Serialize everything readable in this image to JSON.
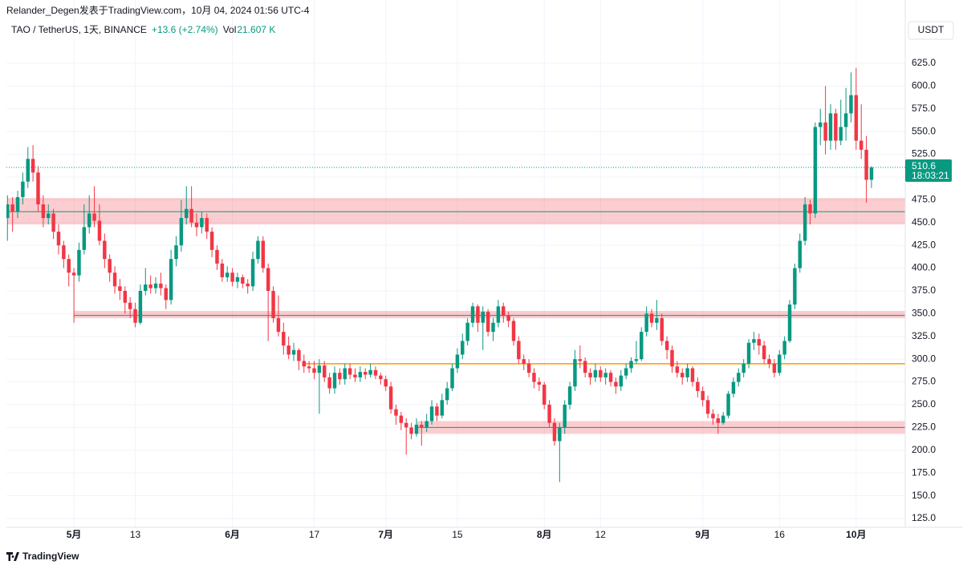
{
  "chart_data": {
    "type": "candlestick",
    "attribution": "Relander_Degen发表于TradingView.com，10月 04, 2024 01:56 UTC-4",
    "symbol": "TAO / TetherUS, 1天, BINANCE",
    "change": "+13.6 (+2.74%)",
    "volume_label": "Vol",
    "volume": "21.607 K",
    "currency": "USDT",
    "countdown": "18:03:21",
    "brand": "TradingView",
    "up_color": "#089981",
    "down_color": "#f23645",
    "xlim": [
      -0.2,
      175.6
    ],
    "ylim": [
      115.3,
      694.5
    ],
    "grid": true,
    "xticks": [
      {
        "value": 13,
        "label": "5月",
        "major": true
      },
      {
        "value": 25,
        "label": "13"
      },
      {
        "value": 44,
        "label": "6月",
        "major": true
      },
      {
        "value": 60,
        "label": "17"
      },
      {
        "value": 74,
        "label": "7月",
        "major": true
      },
      {
        "value": 88,
        "label": "15"
      },
      {
        "value": 105,
        "label": "8月",
        "major": true
      },
      {
        "value": 116,
        "label": "12"
      },
      {
        "value": 136,
        "label": "9月",
        "major": true
      },
      {
        "value": 151,
        "label": "16"
      },
      {
        "value": 166,
        "label": "10月",
        "major": true
      }
    ],
    "yticks": [
      {
        "value": 125,
        "label": "125.0"
      },
      {
        "value": 150,
        "label": "150.0"
      },
      {
        "value": 175,
        "label": "175.0"
      },
      {
        "value": 200,
        "label": "200.0"
      },
      {
        "value": 225,
        "label": "225.0"
      },
      {
        "value": 250,
        "label": "250.0"
      },
      {
        "value": 275,
        "label": "275.0"
      },
      {
        "value": 300,
        "label": "300.0"
      },
      {
        "value": 325,
        "label": "325.0"
      },
      {
        "value": 350,
        "label": "350.0"
      },
      {
        "value": 375,
        "label": "375.0"
      },
      {
        "value": 400,
        "label": "400.0"
      },
      {
        "value": 425,
        "label": "425.0"
      },
      {
        "value": 450,
        "label": "450.0"
      },
      {
        "value": 475,
        "label": "475.0"
      },
      {
        "value": 500,
        "label": "500.0"
      },
      {
        "value": 525,
        "label": "525.0"
      },
      {
        "value": 550,
        "label": "550.0"
      },
      {
        "value": 575,
        "label": "575.0"
      },
      {
        "value": 600,
        "label": "600.0"
      },
      {
        "value": 625,
        "label": "625.0"
      }
    ],
    "levels": [
      {
        "low": 448,
        "high": 477,
        "line": 462,
        "from": 0,
        "color": "#f23645",
        "line_color": "#089981"
      },
      {
        "low": 345,
        "high": 353,
        "line": 348,
        "from": 13,
        "color": "#f23645",
        "line_color": "#089981"
      },
      {
        "line": 295,
        "from": 58,
        "line_color": "#ff9800"
      },
      {
        "low": 218,
        "high": 232,
        "line": 225,
        "from": 80,
        "color": "#f23645",
        "line_color": "#089981"
      }
    ],
    "candles": [
      [
        455,
        480,
        430,
        470
      ],
      [
        470,
        478,
        440,
        462
      ],
      [
        462,
        485,
        455,
        478
      ],
      [
        478,
        505,
        470,
        495
      ],
      [
        495,
        533,
        488,
        520
      ],
      [
        520,
        535,
        495,
        505
      ],
      [
        505,
        512,
        462,
        470
      ],
      [
        470,
        480,
        445,
        455
      ],
      [
        455,
        470,
        448,
        460
      ],
      [
        460,
        465,
        432,
        440
      ],
      [
        440,
        448,
        415,
        425
      ],
      [
        425,
        430,
        400,
        410
      ],
      [
        410,
        415,
        380,
        395
      ],
      [
        395,
        400,
        340,
        392
      ],
      [
        392,
        428,
        385,
        420
      ],
      [
        420,
        470,
        415,
        445
      ],
      [
        445,
        480,
        438,
        460
      ],
      [
        460,
        490,
        445,
        452
      ],
      [
        452,
        470,
        425,
        430
      ],
      [
        430,
        438,
        400,
        410
      ],
      [
        410,
        415,
        385,
        395
      ],
      [
        395,
        402,
        372,
        380
      ],
      [
        380,
        388,
        365,
        375
      ],
      [
        375,
        380,
        350,
        362
      ],
      [
        362,
        368,
        345,
        355
      ],
      [
        355,
        362,
        335,
        340
      ],
      [
        340,
        382,
        338,
        375
      ],
      [
        375,
        400,
        370,
        382
      ],
      [
        382,
        392,
        372,
        378
      ],
      [
        378,
        390,
        372,
        383
      ],
      [
        383,
        395,
        370,
        378
      ],
      [
        378,
        382,
        355,
        365
      ],
      [
        365,
        420,
        360,
        410
      ],
      [
        410,
        435,
        402,
        425
      ],
      [
        425,
        475,
        418,
        455
      ],
      [
        455,
        490,
        448,
        465
      ],
      [
        465,
        490,
        445,
        450
      ],
      [
        450,
        460,
        435,
        445
      ],
      [
        445,
        462,
        438,
        455
      ],
      [
        455,
        460,
        432,
        440
      ],
      [
        440,
        445,
        412,
        420
      ],
      [
        420,
        425,
        398,
        405
      ],
      [
        405,
        410,
        385,
        390
      ],
      [
        390,
        402,
        385,
        395
      ],
      [
        395,
        400,
        380,
        385
      ],
      [
        385,
        395,
        378,
        390
      ],
      [
        390,
        393,
        378,
        383
      ],
      [
        383,
        388,
        372,
        380
      ],
      [
        380,
        418,
        375,
        410
      ],
      [
        410,
        435,
        405,
        430
      ],
      [
        430,
        435,
        395,
        400
      ],
      [
        400,
        405,
        320,
        375
      ],
      [
        375,
        380,
        340,
        345
      ],
      [
        345,
        370,
        325,
        330
      ],
      [
        330,
        340,
        305,
        315
      ],
      [
        315,
        325,
        300,
        305
      ],
      [
        305,
        318,
        298,
        310
      ],
      [
        310,
        312,
        288,
        298
      ],
      [
        298,
        305,
        285,
        292
      ],
      [
        292,
        298,
        285,
        290
      ],
      [
        290,
        298,
        278,
        285
      ],
      [
        285,
        300,
        240,
        293
      ],
      [
        293,
        298,
        275,
        280
      ],
      [
        280,
        285,
        262,
        268
      ],
      [
        268,
        292,
        262,
        285
      ],
      [
        285,
        290,
        272,
        278
      ],
      [
        278,
        295,
        272,
        290
      ],
      [
        290,
        295,
        278,
        283
      ],
      [
        283,
        290,
        275,
        280
      ],
      [
        280,
        292,
        275,
        286
      ],
      [
        286,
        290,
        278,
        283
      ],
      [
        283,
        295,
        280,
        288
      ],
      [
        288,
        292,
        278,
        282
      ],
      [
        282,
        285,
        272,
        278
      ],
      [
        278,
        282,
        265,
        270
      ],
      [
        270,
        275,
        240,
        245
      ],
      [
        245,
        250,
        228,
        238
      ],
      [
        238,
        242,
        222,
        230
      ],
      [
        230,
        235,
        195,
        225
      ],
      [
        225,
        230,
        212,
        218
      ],
      [
        218,
        235,
        215,
        228
      ],
      [
        228,
        232,
        205,
        225
      ],
      [
        225,
        240,
        220,
        232
      ],
      [
        232,
        255,
        228,
        248
      ],
      [
        248,
        252,
        232,
        238
      ],
      [
        238,
        262,
        235,
        255
      ],
      [
        255,
        275,
        250,
        268
      ],
      [
        268,
        295,
        265,
        290
      ],
      [
        290,
        312,
        285,
        305
      ],
      [
        305,
        328,
        300,
        320
      ],
      [
        320,
        345,
        315,
        340
      ],
      [
        340,
        362,
        335,
        358
      ],
      [
        358,
        360,
        330,
        340
      ],
      [
        340,
        358,
        310,
        352
      ],
      [
        352,
        355,
        325,
        330
      ],
      [
        330,
        345,
        320,
        340
      ],
      [
        340,
        365,
        335,
        358
      ],
      [
        358,
        362,
        340,
        348
      ],
      [
        348,
        352,
        335,
        342
      ],
      [
        342,
        345,
        315,
        320
      ],
      [
        320,
        325,
        295,
        300
      ],
      [
        300,
        305,
        288,
        295
      ],
      [
        295,
        300,
        280,
        285
      ],
      [
        285,
        290,
        268,
        275
      ],
      [
        275,
        280,
        265,
        272
      ],
      [
        272,
        275,
        245,
        250
      ],
      [
        250,
        255,
        225,
        230
      ],
      [
        230,
        235,
        205,
        210
      ],
      [
        210,
        230,
        165,
        225
      ],
      [
        225,
        255,
        218,
        250
      ],
      [
        250,
        275,
        245,
        270
      ],
      [
        270,
        310,
        265,
        300
      ],
      [
        300,
        315,
        290,
        298
      ],
      [
        298,
        302,
        280,
        285
      ],
      [
        285,
        290,
        272,
        280
      ],
      [
        280,
        295,
        275,
        288
      ],
      [
        288,
        292,
        275,
        280
      ],
      [
        280,
        290,
        272,
        285
      ],
      [
        285,
        288,
        270,
        275
      ],
      [
        275,
        280,
        262,
        270
      ],
      [
        270,
        288,
        265,
        282
      ],
      [
        282,
        295,
        278,
        290
      ],
      [
        290,
        302,
        285,
        298
      ],
      [
        298,
        320,
        295,
        300
      ],
      [
        300,
        335,
        298,
        330
      ],
      [
        330,
        358,
        325,
        350
      ],
      [
        350,
        355,
        335,
        340
      ],
      [
        340,
        365,
        332,
        345
      ],
      [
        345,
        350,
        315,
        320
      ],
      [
        320,
        325,
        300,
        310
      ],
      [
        310,
        315,
        285,
        292
      ],
      [
        292,
        298,
        280,
        285
      ],
      [
        285,
        290,
        272,
        280
      ],
      [
        280,
        295,
        275,
        290
      ],
      [
        290,
        292,
        270,
        275
      ],
      [
        275,
        280,
        258,
        265
      ],
      [
        265,
        270,
        248,
        255
      ],
      [
        255,
        260,
        235,
        240
      ],
      [
        240,
        245,
        228,
        235
      ],
      [
        235,
        240,
        218,
        230
      ],
      [
        230,
        242,
        228,
        238
      ],
      [
        238,
        265,
        235,
        262
      ],
      [
        262,
        280,
        258,
        275
      ],
      [
        275,
        290,
        270,
        285
      ],
      [
        285,
        300,
        280,
        295
      ],
      [
        295,
        322,
        290,
        318
      ],
      [
        318,
        330,
        310,
        322
      ],
      [
        322,
        328,
        305,
        315
      ],
      [
        315,
        320,
        295,
        300
      ],
      [
        300,
        305,
        290,
        295
      ],
      [
        295,
        300,
        280,
        285
      ],
      [
        285,
        310,
        282,
        305
      ],
      [
        305,
        325,
        300,
        320
      ],
      [
        320,
        365,
        318,
        360
      ],
      [
        360,
        405,
        355,
        400
      ],
      [
        400,
        438,
        395,
        430
      ],
      [
        430,
        478,
        425,
        470
      ],
      [
        470,
        475,
        448,
        460
      ],
      [
        460,
        560,
        455,
        555
      ],
      [
        555,
        575,
        535,
        560
      ],
      [
        560,
        600,
        525,
        540
      ],
      [
        540,
        580,
        530,
        570
      ],
      [
        570,
        575,
        530,
        540
      ],
      [
        540,
        585,
        535,
        555
      ],
      [
        555,
        598,
        540,
        570
      ],
      [
        570,
        615,
        560,
        590
      ],
      [
        590,
        620,
        530,
        540
      ],
      [
        540,
        580,
        520,
        530
      ],
      [
        530,
        545,
        472,
        497
      ],
      [
        497,
        512,
        488,
        510.6
      ]
    ]
  }
}
